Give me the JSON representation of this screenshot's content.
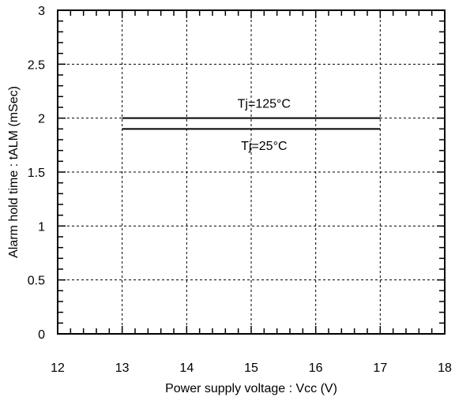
{
  "chart_data": {
    "type": "line",
    "title": "",
    "xlabel": "Power supply voltage : Vcc (V)",
    "ylabel": "Alarm hold time : tALM (mSec)",
    "xlim": [
      12,
      18
    ],
    "ylim": [
      0,
      3
    ],
    "xticks": [
      12,
      13,
      14,
      15,
      16,
      17,
      18
    ],
    "yticks": [
      0,
      0.5,
      1,
      1.5,
      2,
      2.5,
      3
    ],
    "xtick_labels": [
      "12",
      "13",
      "14",
      "15",
      "16",
      "17",
      "18"
    ],
    "ytick_labels": [
      "0",
      "0.5",
      "1",
      "1.5",
      "2",
      "2.5",
      "3"
    ],
    "grid": true,
    "grid_style": "dotted",
    "series": [
      {
        "name": "Tj=125°C",
        "x": [
          13,
          17
        ],
        "y": [
          2.0,
          2.0
        ],
        "color": "#000000"
      },
      {
        "name": "Tj=25°C",
        "x": [
          13,
          17
        ],
        "y": [
          1.9,
          1.9
        ],
        "color": "#000000"
      }
    ],
    "annotations": [
      {
        "text": "Tj=125°C",
        "x": 15.2,
        "y": 2.14
      },
      {
        "text": "Tj=25°C",
        "x": 15.2,
        "y": 1.75
      }
    ]
  }
}
